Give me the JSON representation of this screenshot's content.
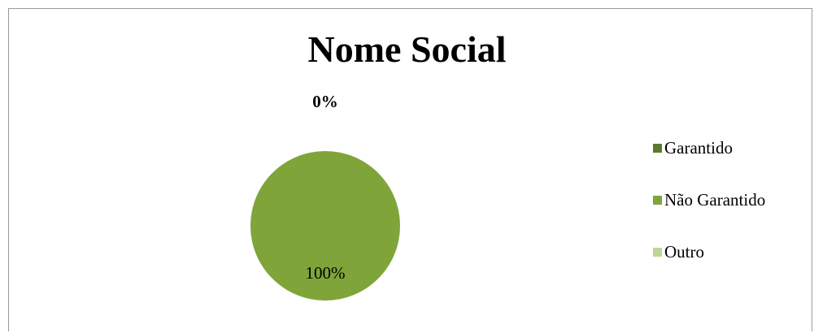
{
  "chart_data": {
    "type": "pie",
    "title": "Nome Social",
    "categories": [
      "Garantido",
      "Não Garantido",
      "Outro"
    ],
    "values": [
      0,
      100,
      0
    ],
    "data_labels": [
      "0%",
      "100%",
      ""
    ],
    "colors": [
      "#5a7a2e",
      "#7fa43a",
      "#c0d497"
    ],
    "legend_position": "right"
  }
}
